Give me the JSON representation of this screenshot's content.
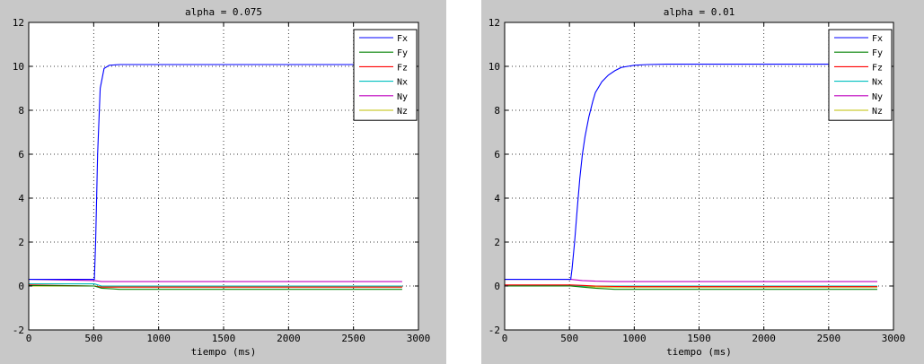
{
  "figure": {
    "background": "#c8c8c8",
    "axes_background": "#ffffff"
  },
  "chart_data": [
    {
      "type": "line",
      "title": "alpha = 0.075",
      "xlabel": "tiempo (ms)",
      "ylabel": "",
      "xlim": [
        0,
        3000
      ],
      "ylim": [
        -2,
        12
      ],
      "xticks": [
        0,
        500,
        1000,
        1500,
        2000,
        2500,
        3000
      ],
      "yticks": [
        -2,
        0,
        2,
        4,
        6,
        8,
        10,
        12
      ],
      "grid": true,
      "legend_position": "top-right",
      "series": [
        {
          "name": "Fx",
          "color": "#0000ff",
          "x": [
            0,
            505,
            515,
            530,
            550,
            580,
            620,
            700,
            2875
          ],
          "y": [
            0.3,
            0.3,
            2.0,
            6.0,
            9.0,
            9.9,
            10.05,
            10.08,
            10.08
          ]
        },
        {
          "name": "Fy",
          "color": "#008000",
          "x": [
            0,
            505,
            560,
            700,
            2875
          ],
          "y": [
            0.02,
            0.0,
            -0.1,
            -0.15,
            -0.15
          ]
        },
        {
          "name": "Fz",
          "color": "#ff0000",
          "x": [
            0,
            505,
            560,
            700,
            2875
          ],
          "y": [
            0.05,
            0.0,
            -0.05,
            -0.05,
            -0.05
          ]
        },
        {
          "name": "Nx",
          "color": "#00bfbf",
          "x": [
            0,
            505,
            560,
            700,
            2875
          ],
          "y": [
            0.1,
            0.1,
            0.0,
            0.0,
            0.0
          ]
        },
        {
          "name": "Ny",
          "color": "#bf00bf",
          "x": [
            0,
            505,
            560,
            700,
            2875
          ],
          "y": [
            0.3,
            0.25,
            0.2,
            0.2,
            0.2
          ]
        },
        {
          "name": "Nz",
          "color": "#bfbf00",
          "x": [
            0,
            505,
            560,
            700,
            2875
          ],
          "y": [
            0.0,
            0.0,
            -0.05,
            -0.05,
            -0.05
          ]
        }
      ]
    },
    {
      "type": "line",
      "title": "alpha = 0.01",
      "xlabel": "tiempo (ms)",
      "ylabel": "",
      "xlim": [
        0,
        3000
      ],
      "ylim": [
        -2,
        12
      ],
      "xticks": [
        0,
        500,
        1000,
        1500,
        2000,
        2500,
        3000
      ],
      "yticks": [
        -2,
        0,
        2,
        4,
        6,
        8,
        10,
        12
      ],
      "grid": true,
      "legend_position": "top-right",
      "series": [
        {
          "name": "Fx",
          "color": "#0000ff",
          "x": [
            0,
            510,
            520,
            540,
            560,
            580,
            600,
            620,
            650,
            680,
            700,
            750,
            800,
            850,
            900,
            950,
            1000,
            1100,
            1250,
            1500,
            2875
          ],
          "y": [
            0.3,
            0.3,
            0.8,
            2.0,
            3.5,
            4.9,
            6.0,
            6.8,
            7.7,
            8.4,
            8.8,
            9.3,
            9.6,
            9.8,
            9.95,
            10.0,
            10.05,
            10.08,
            10.1,
            10.1,
            10.1
          ]
        },
        {
          "name": "Fy",
          "color": "#008000",
          "x": [
            0,
            510,
            600,
            700,
            850,
            1000,
            2875
          ],
          "y": [
            0.0,
            0.0,
            -0.05,
            -0.1,
            -0.15,
            -0.15,
            -0.15
          ]
        },
        {
          "name": "Fz",
          "color": "#ff0000",
          "x": [
            0,
            510,
            600,
            700,
            850,
            1000,
            2875
          ],
          "y": [
            0.05,
            0.05,
            0.03,
            0.0,
            -0.02,
            -0.03,
            -0.03
          ]
        },
        {
          "name": "Nx",
          "color": "#00bfbf",
          "x": [
            0,
            510,
            600,
            700,
            850,
            1000,
            2875
          ],
          "y": [
            0.02,
            0.02,
            0.0,
            0.0,
            0.0,
            0.0,
            0.0
          ]
        },
        {
          "name": "Ny",
          "color": "#bf00bf",
          "x": [
            0,
            510,
            600,
            700,
            850,
            1000,
            2875
          ],
          "y": [
            0.3,
            0.3,
            0.25,
            0.22,
            0.2,
            0.2,
            0.2
          ]
        },
        {
          "name": "Nz",
          "color": "#bfbf00",
          "x": [
            0,
            510,
            600,
            700,
            850,
            1000,
            2875
          ],
          "y": [
            0.0,
            0.0,
            -0.02,
            -0.04,
            -0.05,
            -0.05,
            -0.05
          ]
        }
      ]
    }
  ]
}
